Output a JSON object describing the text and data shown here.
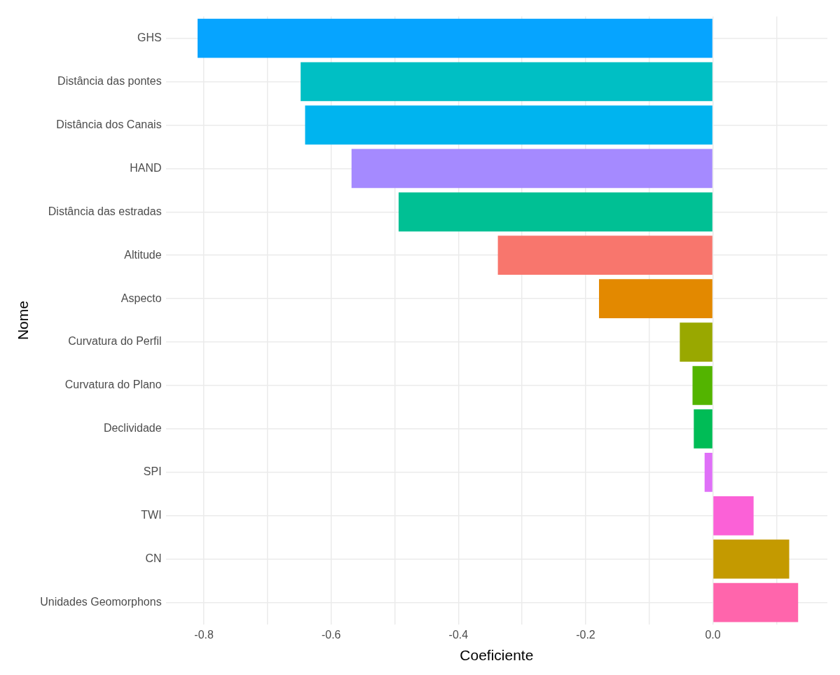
{
  "chart_data": {
    "type": "bar",
    "orientation": "horizontal",
    "xlabel": "Coeficiente",
    "ylabel": "Nome",
    "categories": [
      "GHS",
      "Distância das pontes",
      "Distância dos Canais",
      "HAND",
      "Distância das estradas",
      "Altitude",
      "Aspecto",
      "Curvatura do Perfil",
      "Curvatura do Plano",
      "Declividade",
      "SPI",
      "TWI",
      "CN",
      "Unidades Geomorphons"
    ],
    "values": [
      -0.81,
      -0.648,
      -0.641,
      -0.568,
      -0.494,
      -0.338,
      -0.179,
      -0.052,
      -0.032,
      -0.03,
      -0.013,
      0.064,
      0.12,
      0.134
    ],
    "colors": [
      "#06a4ff",
      "#00bfc4",
      "#00b4ef",
      "#a58aff",
      "#00c094",
      "#f8766d",
      "#e38900",
      "#99a800",
      "#53b400",
      "#00bc56",
      "#df70f8",
      "#fb61d7",
      "#c49a00",
      "#ff65ac"
    ],
    "xlim": [
      -0.86,
      0.18
    ],
    "xticks": [
      -0.8,
      {
        "value": -0.7,
        "label": null
      },
      -0.6,
      {
        "value": -0.5,
        "label": null
      },
      -0.4,
      {
        "value": -0.3,
        "label": null
      },
      -0.2,
      {
        "value": -0.1,
        "label": null
      },
      {
        "value": 0,
        "label": "0.0"
      },
      {
        "value": 0.1,
        "label": null
      }
    ],
    "grid": true,
    "legend": false
  }
}
